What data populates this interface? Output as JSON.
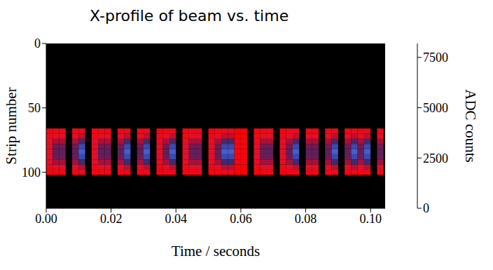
{
  "chart_data": {
    "type": "heatmap",
    "title": "X-profile of beam vs. time",
    "x_label": "Time / seconds",
    "y_label": "Strip number",
    "xlim": [
      0,
      0.1045
    ],
    "xticks": [
      {
        "value": 0,
        "label": "0.00"
      },
      {
        "value": 0.02,
        "label": "0.02"
      },
      {
        "value": 0.04,
        "label": "0.04"
      },
      {
        "value": 0.06,
        "label": "0.06"
      },
      {
        "value": 0.08,
        "label": "0.08"
      },
      {
        "value": 0.1,
        "label": "0.10"
      }
    ],
    "ylim": [
      128,
      0
    ],
    "yticks": [
      0,
      50,
      100
    ],
    "colorbar": {
      "label": "ADC counts",
      "range": [
        0,
        8192
      ],
      "ticks": [
        0,
        2500,
        5000,
        7500
      ]
    },
    "x_bins": [
      0,
      0.002,
      0.004,
      0.006,
      0.008,
      0.01,
      0.012,
      0.014,
      0.016,
      0.018,
      0.02,
      0.022,
      0.024,
      0.026,
      0.028,
      0.03,
      0.032,
      0.034,
      0.036,
      0.038,
      0.04,
      0.042,
      0.044,
      0.046,
      0.048,
      0.05,
      0.052,
      0.054,
      0.056,
      0.058,
      0.06,
      0.062,
      0.064,
      0.066,
      0.068,
      0.07,
      0.072,
      0.074,
      0.076,
      0.078,
      0.08,
      0.082,
      0.084,
      0.086,
      0.088,
      0.09,
      0.092,
      0.094,
      0.096,
      0.098,
      0.1,
      0.102,
      0.104
    ],
    "y_bins": [
      66,
      70,
      74,
      78,
      82,
      86,
      90,
      94,
      98,
      102
    ],
    "z": [
      [
        300,
        500,
        700,
        800,
        800,
        800,
        700,
        500,
        300
      ],
      [
        400,
        800,
        1400,
        1900,
        2100,
        1900,
        1400,
        800,
        400
      ],
      [
        400,
        800,
        1400,
        1900,
        2100,
        1900,
        1400,
        800,
        400
      ],
      [
        null,
        null,
        null,
        null,
        null,
        null,
        null,
        null,
        null
      ],
      [
        400,
        800,
        1400,
        1900,
        2100,
        1900,
        1400,
        800,
        400
      ],
      [
        500,
        1200,
        2300,
        3000,
        3400,
        3000,
        2300,
        1200,
        500
      ],
      [
        null,
        null,
        null,
        null,
        null,
        null,
        null,
        null,
        null
      ],
      [
        300,
        500,
        700,
        800,
        800,
        800,
        700,
        500,
        300
      ],
      [
        400,
        800,
        1400,
        1900,
        2100,
        1900,
        1400,
        800,
        400
      ],
      [
        400,
        800,
        1400,
        1900,
        2100,
        1900,
        1400,
        800,
        400
      ],
      [
        null,
        null,
        null,
        null,
        null,
        null,
        null,
        null,
        null
      ],
      [
        400,
        800,
        1400,
        1900,
        2100,
        1900,
        1400,
        800,
        400
      ],
      [
        500,
        1200,
        2300,
        3000,
        3400,
        3000,
        2300,
        1200,
        500
      ],
      [
        null,
        null,
        null,
        null,
        null,
        null,
        null,
        null,
        null
      ],
      [
        400,
        800,
        1400,
        1900,
        2100,
        1900,
        1400,
        800,
        400
      ],
      [
        500,
        1200,
        2300,
        3000,
        3400,
        3000,
        2300,
        1200,
        500
      ],
      [
        null,
        null,
        null,
        null,
        null,
        null,
        null,
        null,
        null
      ],
      [
        300,
        500,
        700,
        800,
        800,
        800,
        700,
        500,
        300
      ],
      [
        400,
        800,
        1400,
        1900,
        2100,
        1900,
        1400,
        800,
        400
      ],
      [
        500,
        1200,
        2300,
        3000,
        3400,
        3000,
        2300,
        1200,
        500
      ],
      [
        null,
        null,
        null,
        null,
        null,
        null,
        null,
        null,
        null
      ],
      [
        300,
        500,
        700,
        800,
        800,
        800,
        700,
        500,
        300
      ],
      [
        400,
        800,
        1400,
        1900,
        2100,
        1900,
        1400,
        800,
        400
      ],
      [
        400,
        800,
        1400,
        1900,
        2100,
        1900,
        1400,
        800,
        400
      ],
      [
        null,
        null,
        null,
        null,
        null,
        null,
        null,
        null,
        null
      ],
      [
        300,
        500,
        700,
        800,
        800,
        800,
        700,
        500,
        300
      ],
      [
        400,
        800,
        1400,
        1900,
        2100,
        1900,
        1400,
        800,
        400
      ],
      [
        500,
        1200,
        2300,
        3000,
        3400,
        3000,
        2300,
        1200,
        500
      ],
      [
        500,
        1200,
        2300,
        3000,
        3400,
        3000,
        2300,
        1200,
        500
      ],
      [
        100,
        200,
        300,
        300,
        300,
        300,
        300,
        200,
        100
      ],
      [
        100,
        200,
        300,
        300,
        300,
        300,
        300,
        200,
        100
      ],
      [
        null,
        null,
        null,
        null,
        null,
        null,
        null,
        null,
        null
      ],
      [
        300,
        500,
        700,
        800,
        800,
        800,
        700,
        500,
        300
      ],
      [
        400,
        800,
        1400,
        1900,
        2100,
        1900,
        1400,
        800,
        400
      ],
      [
        400,
        800,
        1400,
        1900,
        2100,
        1900,
        1400,
        800,
        400
      ],
      [
        null,
        null,
        null,
        null,
        null,
        null,
        null,
        null,
        null
      ],
      [
        300,
        500,
        700,
        800,
        800,
        800,
        700,
        500,
        300
      ],
      [
        400,
        800,
        1400,
        1900,
        2100,
        1900,
        1400,
        800,
        400
      ],
      [
        500,
        1200,
        2300,
        3000,
        3400,
        3000,
        2300,
        1200,
        500
      ],
      [
        null,
        null,
        null,
        null,
        null,
        null,
        null,
        null,
        null
      ],
      [
        400,
        800,
        1400,
        1900,
        2100,
        1900,
        1400,
        800,
        400
      ],
      [
        400,
        800,
        1400,
        1900,
        2100,
        1900,
        1400,
        800,
        400
      ],
      [
        null,
        null,
        null,
        null,
        null,
        null,
        null,
        null,
        null
      ],
      [
        400,
        800,
        1400,
        1900,
        2100,
        1900,
        1400,
        800,
        400
      ],
      [
        500,
        1200,
        2300,
        3000,
        3400,
        3000,
        2300,
        1200,
        500
      ],
      [
        null,
        null,
        null,
        null,
        null,
        null,
        null,
        null,
        null
      ],
      [
        400,
        800,
        1400,
        1900,
        2100,
        1900,
        1400,
        800,
        400
      ],
      [
        500,
        1200,
        2300,
        3000,
        3400,
        3000,
        2300,
        1200,
        500
      ],
      [
        400,
        800,
        1400,
        1900,
        2100,
        1900,
        1400,
        800,
        400
      ],
      [
        500,
        1200,
        2300,
        3000,
        3400,
        3000,
        2300,
        1200,
        500
      ],
      [
        null,
        null,
        null,
        null,
        null,
        null,
        null,
        null,
        null
      ],
      [
        400,
        800,
        1400,
        1900,
        2100,
        1900,
        1400,
        800,
        400
      ]
    ]
  }
}
